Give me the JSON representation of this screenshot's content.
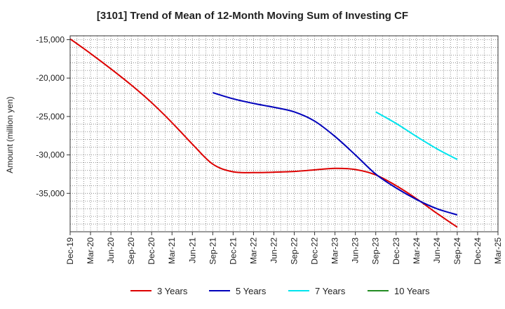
{
  "chart_data": {
    "type": "line",
    "title": "[3101]  Trend of Mean of 12-Month Moving Sum of Investing CF",
    "xlabel": "",
    "ylabel": "Amount (million yen)",
    "ylim": [
      -40000,
      -14500
    ],
    "yticks": [
      -15000,
      -20000,
      -25000,
      -30000,
      -35000
    ],
    "ytick_labels": [
      "-15,000",
      "-20,000",
      "-25,000",
      "-30,000",
      "-35,000"
    ],
    "x": [
      "Dec-19",
      "Mar-20",
      "Jun-20",
      "Sep-20",
      "Dec-20",
      "Mar-21",
      "Jun-21",
      "Sep-21",
      "Dec-21",
      "Mar-22",
      "Jun-22",
      "Sep-22",
      "Dec-22",
      "Mar-23",
      "Jun-23",
      "Sep-23",
      "Dec-23",
      "Mar-24",
      "Jun-24",
      "Sep-24",
      "Dec-24",
      "Mar-25"
    ],
    "grid": true,
    "legend_position": "bottom",
    "series": [
      {
        "name": "3 Years",
        "color": "#dd0000",
        "values": [
          -14900,
          -16800,
          -18800,
          -20900,
          -23200,
          -25800,
          -28600,
          -31200,
          -32200,
          -32300,
          -32250,
          -32150,
          -31950,
          -31750,
          -31900,
          -32600,
          -34000,
          -35700,
          -37600,
          -39400,
          null,
          null
        ]
      },
      {
        "name": "5 Years",
        "color": "#0000bb",
        "values": [
          null,
          null,
          null,
          null,
          null,
          null,
          null,
          -21900,
          -22700,
          -23300,
          -23800,
          -24400,
          -25600,
          -27600,
          -30000,
          -32500,
          -34300,
          -35800,
          -37000,
          -37800,
          null,
          null
        ]
      },
      {
        "name": "7 Years",
        "color": "#00e5ee",
        "values": [
          null,
          null,
          null,
          null,
          null,
          null,
          null,
          null,
          null,
          null,
          null,
          null,
          null,
          null,
          null,
          -24400,
          -25900,
          -27600,
          -29200,
          -30600,
          null,
          null
        ]
      },
      {
        "name": "10 Years",
        "color": "#228b22",
        "values": [
          null,
          null,
          null,
          null,
          null,
          null,
          null,
          null,
          null,
          null,
          null,
          null,
          null,
          null,
          null,
          null,
          null,
          null,
          null,
          null,
          null,
          null
        ]
      }
    ]
  }
}
